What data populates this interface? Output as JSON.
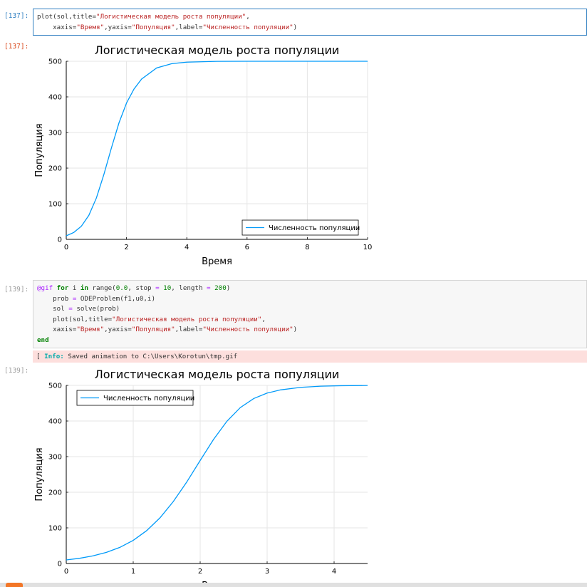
{
  "cells": {
    "c137": {
      "in_prompt": "[137]:",
      "out_prompt": "[137]:"
    },
    "c139": {
      "in_prompt": "[139]:",
      "out_prompt": "[139]:"
    }
  },
  "info": {
    "label": "Info:",
    "bracket": "[",
    "message": "Saved animation to C:\\Users\\Korotun\\tmp.gif"
  },
  "code": {
    "plot_fn": "plot",
    "sol_arg": "(sol,title=",
    "title_str": "\"Логистическая модель роста популяции\"",
    "xaxis_kw": "xaxis=",
    "xaxis_str": "\"Время\"",
    "yaxis_kw": ",yaxis=",
    "yaxis_str": "\"Популяция\"",
    "label_kw": ",label=",
    "label_str": "\"Численность популяции\"",
    "gif": "@gif",
    "for_kw": "for",
    "loop_var": " i ",
    "in_kw": "in",
    "range_call": " range(",
    "start": "0.0",
    "stop_kw": ", stop ",
    "eq": "=",
    "stop_val": "10",
    "length_kw": ", length ",
    "length_val": "200",
    "close": ")",
    "prob_line_a": "prob ",
    "prob_line_b": " ODEProblem(f1,u0,i)",
    "sol_line_a": "sol ",
    "sol_line_b": " solve(prob)",
    "end_kw": "end",
    "comma": ",",
    "close_paren": ")"
  },
  "chart_data": [
    {
      "type": "line",
      "title": "Логистическая модель роста популяции",
      "xlabel": "Время",
      "ylabel": "Популяция",
      "xlim": [
        0,
        10
      ],
      "ylim": [
        0,
        500
      ],
      "xticks": [
        "0",
        "2",
        "4",
        "6",
        "8",
        "10"
      ],
      "yticks": [
        "0",
        "100",
        "200",
        "300",
        "400",
        "500"
      ],
      "grid": true,
      "legend_position": "bottom-right",
      "series": [
        {
          "name": "Численность популяции",
          "color": "#009af9",
          "x": [
            0,
            0.25,
            0.5,
            0.75,
            1.0,
            1.25,
            1.5,
            1.75,
            2.0,
            2.25,
            2.5,
            3,
            3.5,
            4,
            5,
            6,
            7,
            8,
            9,
            10
          ],
          "y": [
            10,
            19.4,
            36.8,
            67.4,
            116.1,
            182.6,
            257.0,
            327.0,
            382.8,
            422.4,
            450.0,
            481.2,
            493.3,
            497.5,
            499.7,
            499.96,
            499.99,
            500,
            500,
            500
          ]
        }
      ]
    },
    {
      "type": "line",
      "title": "Логистическая модель роста популяции",
      "xlabel": "Время",
      "ylabel": "Популяция",
      "xlim": [
        0,
        4.5
      ],
      "ylim": [
        0,
        500
      ],
      "xticks": [
        "0",
        "1",
        "2",
        "3",
        "4"
      ],
      "yticks": [
        "0",
        "100",
        "200",
        "300",
        "400",
        "500"
      ],
      "grid": true,
      "legend_position": "top-left",
      "series": [
        {
          "name": "Численность популяции",
          "color": "#009af9",
          "x": [
            0,
            0.2,
            0.4,
            0.6,
            0.8,
            1.0,
            1.2,
            1.4,
            1.6,
            1.8,
            2.0,
            2.2,
            2.4,
            2.6,
            2.8,
            3.0,
            3.2,
            3.5,
            3.8,
            4.1,
            4.5
          ],
          "y": [
            10,
            14.6,
            21.4,
            31.2,
            45.2,
            64.9,
            92.1,
            128.2,
            174.2,
            228.9,
            289.2,
            348.5,
            399.5,
            437.8,
            463.1,
            478.4,
            487.4,
            494.5,
            497.8,
            499.1,
            499.7
          ]
        }
      ]
    }
  ]
}
